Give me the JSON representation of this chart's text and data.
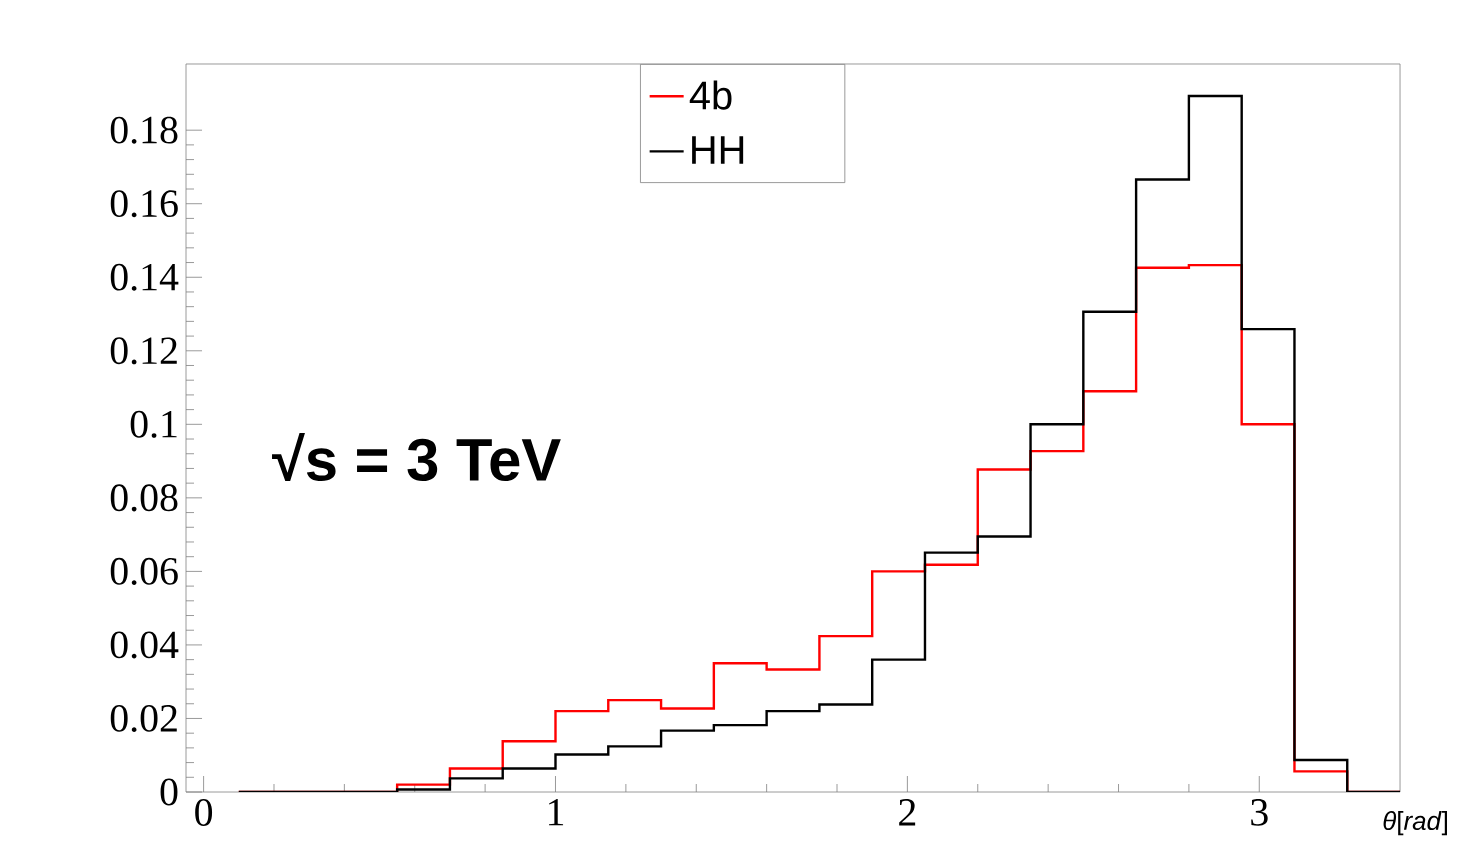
{
  "chart_data": {
    "type": "histogram",
    "bins": [
      0.1,
      0.25,
      0.4,
      0.55,
      0.7,
      0.85,
      1.0,
      1.15,
      1.3,
      1.45,
      1.6,
      1.75,
      1.9,
      2.05,
      2.2,
      2.35,
      2.5,
      2.65,
      2.8,
      2.95,
      3.1,
      3.25,
      3.4
    ],
    "series": [
      {
        "name": "4b",
        "color": "#ff0000",
        "values": [
          0,
          0,
          0,
          0.002,
          0.0064,
          0.0138,
          0.022,
          0.025,
          0.0227,
          0.035,
          0.0333,
          0.0424,
          0.06,
          0.0618,
          0.0877,
          0.0927,
          0.109,
          0.1426,
          0.1433,
          0.1,
          0.0056,
          0
        ]
      },
      {
        "name": "HH",
        "color": "#000000",
        "values": [
          0,
          0,
          0,
          0.0007,
          0.0037,
          0.0064,
          0.0102,
          0.0124,
          0.0167,
          0.0182,
          0.022,
          0.0238,
          0.036,
          0.0651,
          0.0695,
          0.1,
          0.1306,
          0.1666,
          0.1893,
          0.1259,
          0.0087,
          0
        ]
      }
    ],
    "xlabel": "*θ*[*rad*]",
    "xlim": [
      -0.05,
      3.4
    ],
    "ylim": [
      0,
      0.198
    ],
    "xticks": [
      0,
      1,
      2,
      3
    ],
    "yticks": [
      0,
      0.02,
      0.04,
      0.06,
      0.08,
      0.1,
      0.12,
      0.14,
      0.16,
      0.18
    ],
    "annotations": [
      "√s = 3 TeV"
    ],
    "legend": "top"
  }
}
